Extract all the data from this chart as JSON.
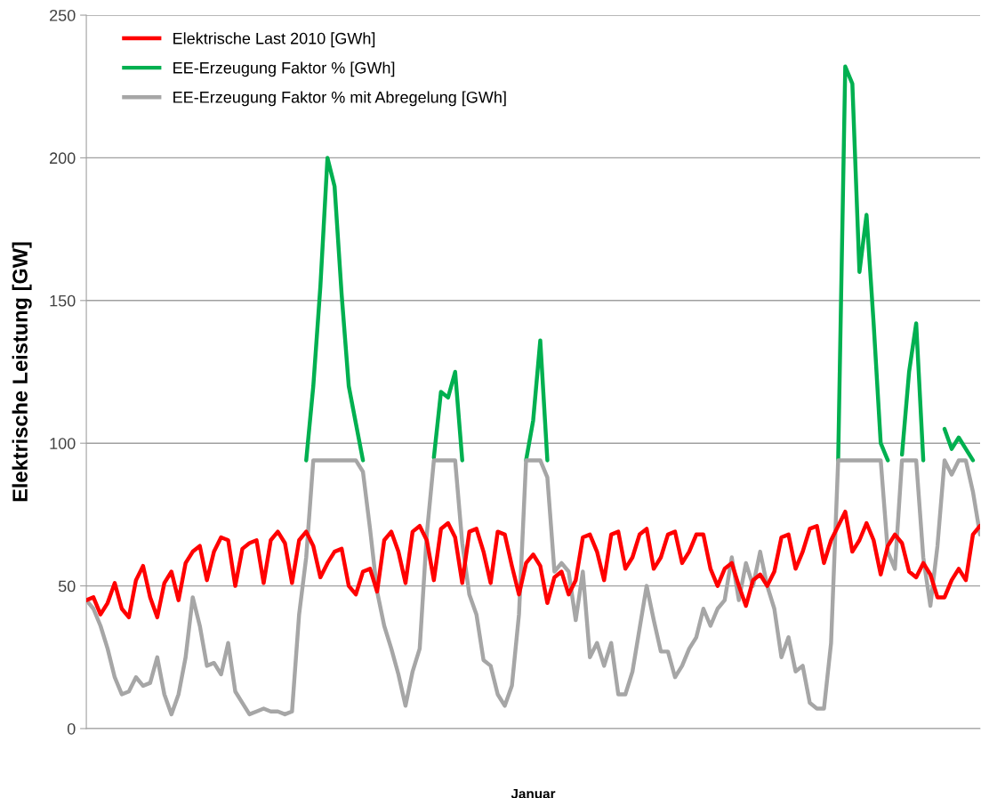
{
  "chart_data": {
    "type": "line",
    "xlabel": "Januar",
    "ylabel": "Elektrische Leistung [GW]",
    "categories": [
      null,
      null,
      null,
      null,
      null,
      null,
      null,
      null,
      null,
      null,
      null,
      null,
      null,
      null,
      null,
      null,
      null,
      null,
      null,
      null,
      null,
      null,
      null,
      null,
      null,
      null,
      null,
      null,
      null,
      null,
      null,
      null,
      null,
      null,
      null,
      null,
      null,
      null,
      null,
      null,
      null,
      null,
      null,
      null,
      null,
      null,
      null,
      null,
      null,
      null,
      null,
      null,
      null,
      null,
      null,
      null,
      null,
      null,
      null,
      null,
      null,
      null,
      null,
      null,
      null,
      null,
      null,
      null,
      null,
      null,
      null,
      null,
      null,
      null,
      null,
      null,
      null,
      null,
      null,
      null,
      null,
      null,
      null,
      null,
      null,
      null,
      null,
      null,
      null,
      null,
      null,
      null,
      null,
      null,
      null,
      null,
      null,
      null,
      null,
      null,
      null,
      null,
      null,
      null,
      null,
      null,
      null,
      null,
      null,
      null,
      null,
      null,
      null,
      null,
      null,
      null,
      null,
      null,
      null,
      null,
      null,
      null,
      null,
      null,
      null,
      null,
      null
    ],
    "ylim": [
      0,
      250
    ],
    "yticks": [
      0,
      50,
      100,
      150,
      200,
      250
    ],
    "grid": "y",
    "legend": "top left",
    "line_style": "solid",
    "marker": "none",
    "series": [
      {
        "name": "Elektrische Last 2010 [GWh]",
        "color": "#ff0000",
        "values": [
          45,
          46,
          40,
          44,
          51,
          42,
          39,
          52,
          57,
          46,
          39,
          51,
          55,
          45,
          58,
          62,
          64,
          52,
          62,
          67,
          66,
          50,
          63,
          65,
          66,
          51,
          66,
          69,
          65,
          51,
          66,
          69,
          64,
          53,
          58,
          62,
          63,
          50,
          47,
          55,
          56,
          48,
          66,
          69,
          62,
          51,
          69,
          71,
          66,
          52,
          70,
          72,
          67,
          51,
          69,
          70,
          62,
          51,
          69,
          68,
          57,
          47,
          58,
          61,
          57,
          44,
          53,
          55,
          47,
          52,
          67,
          68,
          62,
          52,
          68,
          69,
          56,
          60,
          68,
          70,
          56,
          60,
          68,
          69,
          58,
          62,
          68,
          68,
          56,
          50,
          56,
          58,
          50,
          43,
          52,
          54,
          50,
          55,
          67,
          68,
          56,
          62,
          70,
          71,
          58,
          66,
          71,
          76,
          62,
          66,
          72,
          66,
          54,
          64,
          68,
          65,
          55,
          53,
          58,
          54,
          46,
          46,
          52,
          56,
          52,
          68,
          71
        ]
      },
      {
        "name": "EE-Erzeugung Faktor % [GWh]",
        "color": "#00b050",
        "values": [
          null,
          null,
          null,
          null,
          null,
          null,
          null,
          null,
          null,
          null,
          null,
          null,
          null,
          null,
          null,
          null,
          null,
          null,
          null,
          null,
          null,
          null,
          null,
          null,
          null,
          null,
          null,
          null,
          null,
          null,
          null,
          94,
          120,
          155,
          200,
          190,
          152,
          120,
          107,
          94,
          null,
          null,
          null,
          null,
          null,
          null,
          null,
          null,
          null,
          95,
          118,
          116,
          125,
          94,
          null,
          null,
          null,
          null,
          null,
          null,
          null,
          null,
          94,
          108,
          136,
          94,
          null,
          null,
          null,
          null,
          null,
          null,
          null,
          null,
          null,
          null,
          null,
          null,
          null,
          null,
          null,
          null,
          null,
          null,
          null,
          null,
          null,
          null,
          null,
          null,
          null,
          null,
          null,
          null,
          null,
          null,
          null,
          null,
          null,
          null,
          null,
          null,
          null,
          null,
          null,
          null,
          94,
          232,
          226,
          160,
          180,
          142,
          100,
          94,
          null,
          96,
          125,
          142,
          94,
          null,
          null,
          105,
          98,
          102,
          98,
          94,
          null
        ]
      },
      {
        "name": "EE-Erzeugung Faktor % mit Abregelung [GWh]",
        "color": "#a6a6a6",
        "values": [
          45,
          42,
          36,
          28,
          18,
          12,
          13,
          18,
          15,
          16,
          25,
          12,
          5,
          12,
          25,
          46,
          36,
          22,
          23,
          19,
          30,
          13,
          9,
          5,
          6,
          7,
          6,
          6,
          5,
          6,
          40,
          60,
          94,
          94,
          94,
          94,
          94,
          94,
          94,
          90,
          70,
          48,
          36,
          28,
          19,
          8,
          20,
          28,
          68,
          94,
          94,
          94,
          94,
          65,
          47,
          40,
          24,
          22,
          12,
          8,
          15,
          40,
          94,
          94,
          94,
          88,
          55,
          58,
          55,
          38,
          55,
          25,
          30,
          22,
          30,
          12,
          12,
          20,
          35,
          50,
          38,
          27,
          27,
          18,
          22,
          28,
          32,
          42,
          36,
          42,
          45,
          60,
          45,
          58,
          50,
          62,
          50,
          42,
          25,
          32,
          20,
          22,
          9,
          7,
          7,
          30,
          94,
          94,
          94,
          94,
          94,
          94,
          94,
          62,
          56,
          94,
          94,
          94,
          60,
          43,
          64,
          94,
          89,
          94,
          94,
          83,
          68
        ]
      }
    ]
  }
}
